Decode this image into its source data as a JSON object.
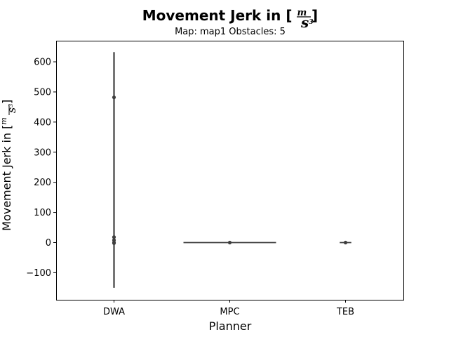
{
  "chart_data": {
    "type": "violin",
    "title_prefix": "Movement Jerk in [",
    "title_suffix": "]",
    "unit_numerator": "m",
    "unit_denominator": "s",
    "unit_exponent": "3",
    "subtitle": "Map: map1 Obstacles: 5",
    "xlabel": "Planner",
    "ylabel_prefix": "Movement Jerk in [",
    "ylabel_suffix": "]",
    "ylim": [
      -190,
      670
    ],
    "yticks": [
      -100,
      0,
      100,
      200,
      300,
      400,
      500,
      600
    ],
    "yticklabels": [
      "−100",
      "0",
      "100",
      "200",
      "300",
      "400",
      "500",
      "600"
    ],
    "categories": [
      "DWA",
      "MPC",
      "TEB"
    ],
    "groups": [
      {
        "name": "DWA",
        "min": -150,
        "max": 632,
        "spread": 0.02,
        "points": [
          482,
          18,
          8,
          0,
          -2
        ]
      },
      {
        "name": "MPC",
        "min": 0,
        "max": 0,
        "spread": 0.8,
        "points": [
          0
        ]
      },
      {
        "name": "TEB",
        "min": -2,
        "max": 2,
        "spread": 0.1,
        "points": [
          0
        ]
      }
    ],
    "color": "#3f3f3f"
  }
}
